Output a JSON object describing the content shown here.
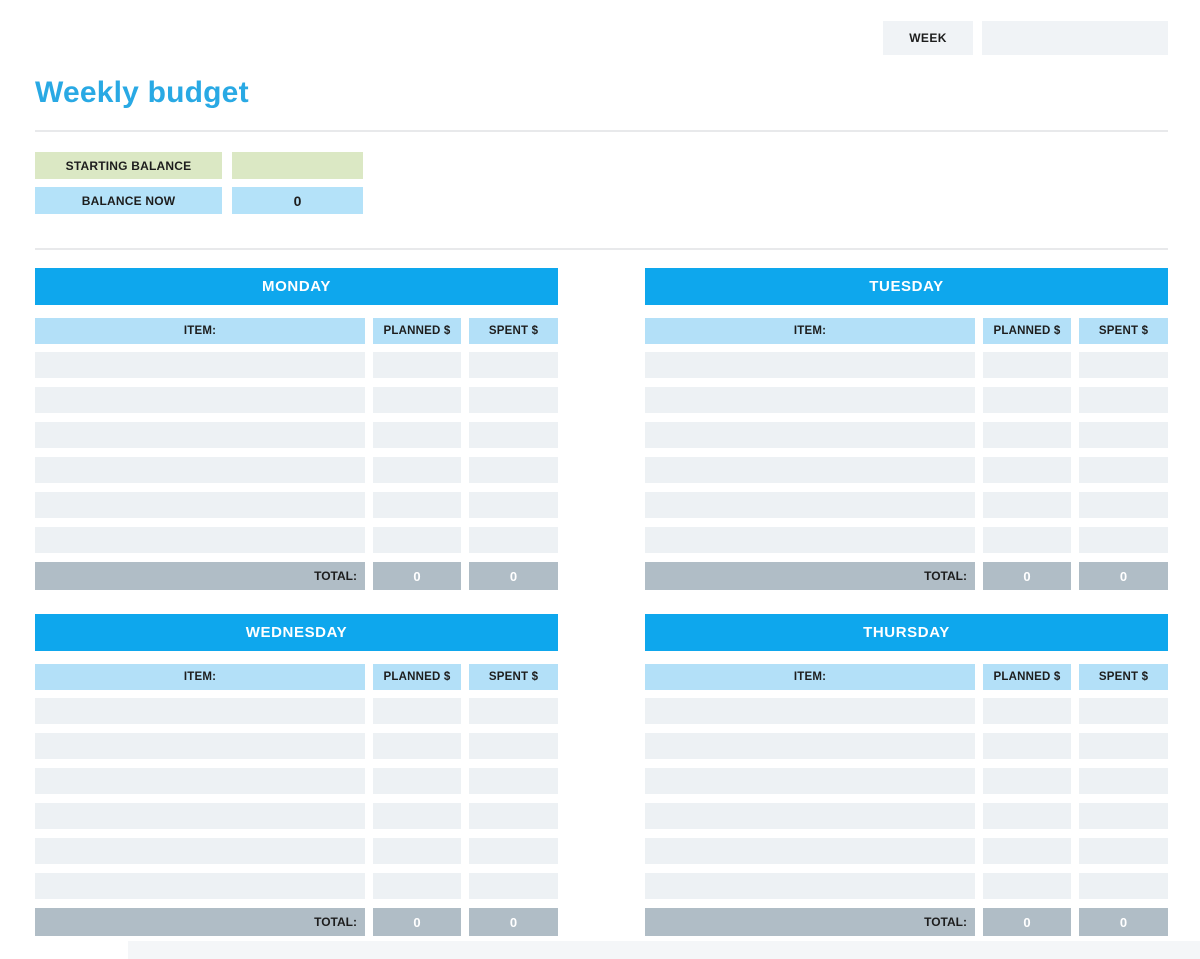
{
  "header": {
    "week_label": "WEEK",
    "week_value": "",
    "title": "Weekly budget"
  },
  "balance": {
    "rows": [
      {
        "label": "STARTING BALANCE",
        "value": ""
      },
      {
        "label": "BALANCE NOW",
        "value": "0"
      }
    ]
  },
  "columns": {
    "item": "ITEM:",
    "planned": "PLANNED $",
    "spent": "SPENT $"
  },
  "total_label": "TOTAL:",
  "days": [
    {
      "name": "MONDAY",
      "items": [
        {
          "item": "",
          "planned": "",
          "spent": ""
        },
        {
          "item": "",
          "planned": "",
          "spent": ""
        },
        {
          "item": "",
          "planned": "",
          "spent": ""
        },
        {
          "item": "",
          "planned": "",
          "spent": ""
        },
        {
          "item": "",
          "planned": "",
          "spent": ""
        },
        {
          "item": "",
          "planned": "",
          "spent": ""
        }
      ],
      "total": {
        "planned": "0",
        "spent": "0"
      }
    },
    {
      "name": "TUESDAY",
      "items": [
        {
          "item": "",
          "planned": "",
          "spent": ""
        },
        {
          "item": "",
          "planned": "",
          "spent": ""
        },
        {
          "item": "",
          "planned": "",
          "spent": ""
        },
        {
          "item": "",
          "planned": "",
          "spent": ""
        },
        {
          "item": "",
          "planned": "",
          "spent": ""
        },
        {
          "item": "",
          "planned": "",
          "spent": ""
        }
      ],
      "total": {
        "planned": "0",
        "spent": "0"
      }
    },
    {
      "name": "WEDNESDAY",
      "items": [
        {
          "item": "",
          "planned": "",
          "spent": ""
        },
        {
          "item": "",
          "planned": "",
          "spent": ""
        },
        {
          "item": "",
          "planned": "",
          "spent": ""
        },
        {
          "item": "",
          "planned": "",
          "spent": ""
        },
        {
          "item": "",
          "planned": "",
          "spent": ""
        },
        {
          "item": "",
          "planned": "",
          "spent": ""
        }
      ],
      "total": {
        "planned": "0",
        "spent": "0"
      }
    },
    {
      "name": "THURSDAY",
      "items": [
        {
          "item": "",
          "planned": "",
          "spent": ""
        },
        {
          "item": "",
          "planned": "",
          "spent": ""
        },
        {
          "item": "",
          "planned": "",
          "spent": ""
        },
        {
          "item": "",
          "planned": "",
          "spent": ""
        },
        {
          "item": "",
          "planned": "",
          "spent": ""
        },
        {
          "item": "",
          "planned": "",
          "spent": ""
        }
      ],
      "total": {
        "planned": "0",
        "spent": "0"
      }
    }
  ],
  "colors": {
    "day_header": "#0ea7ed",
    "col_header": "#b3e0f8",
    "row_bg": "#edf1f4",
    "total_bg": "#b0bdc6",
    "balance_green": "#dbe8c4",
    "balance_blue": "#b4e2f9",
    "week_bg": "#f0f3f6",
    "title_blue": "#29a9e4"
  }
}
